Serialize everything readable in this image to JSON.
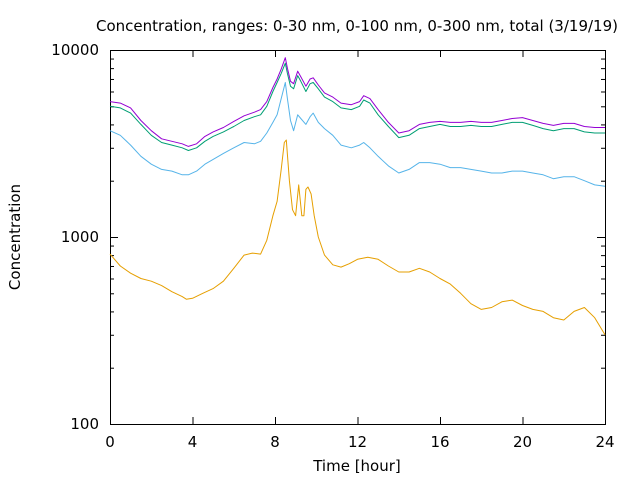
{
  "chart_data": {
    "type": "line",
    "title": "Concentration, ranges: 0-30 nm, 0-100 nm, 0-300 nm, total (3/19/19)",
    "xlabel": "Time [hour]",
    "ylabel": "Concentration",
    "xlim": [
      0,
      24
    ],
    "ylim": [
      100,
      10000
    ],
    "yscale": "log",
    "grid": false,
    "legend": "none",
    "xticks": [
      0,
      4,
      8,
      12,
      16,
      20,
      24
    ],
    "xtick_labels": [
      "0",
      "4",
      "8",
      "12",
      "16",
      "20",
      "24"
    ],
    "yticks": [
      100,
      1000,
      10000
    ],
    "ytick_labels": [
      "100",
      "1000",
      "10000"
    ],
    "series": [
      {
        "color": "#e69f00",
        "x": [
          0,
          0.5,
          1,
          1.5,
          2,
          2.5,
          3,
          3.5,
          3.7,
          4,
          4.5,
          5,
          5.5,
          6,
          6.5,
          6.9,
          7.3,
          7.6,
          7.9,
          8.1,
          8.3,
          8.45,
          8.55,
          8.7,
          8.85,
          9.0,
          9.15,
          9.3,
          9.4,
          9.5,
          9.6,
          9.75,
          9.9,
          10.1,
          10.4,
          10.8,
          11.2,
          11.6,
          12,
          12.5,
          13,
          13.5,
          14,
          14.5,
          15,
          15.5,
          16,
          16.5,
          17,
          17.5,
          18,
          18.5,
          19,
          19.5,
          20,
          20.5,
          21,
          21.5,
          22,
          22.5,
          23,
          23.5,
          24
        ],
        "values": [
          810,
          700,
          640,
          600,
          580,
          550,
          510,
          480,
          465,
          470,
          500,
          530,
          580,
          680,
          800,
          820,
          810,
          960,
          1300,
          1550,
          2300,
          3200,
          3300,
          2000,
          1400,
          1300,
          1900,
          1300,
          1300,
          1800,
          1850,
          1700,
          1300,
          1000,
          800,
          710,
          690,
          720,
          760,
          780,
          760,
          700,
          650,
          650,
          680,
          650,
          600,
          560,
          500,
          440,
          410,
          420,
          450,
          460,
          430,
          410,
          400,
          370,
          360,
          400,
          420,
          370,
          300
        ]
      },
      {
        "color": "#56b4e9",
        "x": [
          0,
          0.5,
          1,
          1.5,
          2,
          2.5,
          3,
          3.5,
          3.8,
          4.2,
          4.6,
          5,
          5.5,
          6,
          6.5,
          7,
          7.3,
          7.6,
          7.9,
          8.1,
          8.3,
          8.5,
          8.6,
          8.75,
          8.9,
          9.1,
          9.25,
          9.5,
          9.7,
          9.85,
          10.1,
          10.4,
          10.8,
          11.2,
          11.7,
          12.1,
          12.3,
          12.6,
          13,
          13.5,
          14,
          14.5,
          15,
          15.5,
          16,
          16.5,
          17,
          17.5,
          18,
          18.5,
          19,
          19.5,
          20,
          20.5,
          21,
          21.5,
          22,
          22.5,
          23,
          23.5,
          24
        ],
        "values": [
          3700,
          3500,
          3100,
          2700,
          2450,
          2300,
          2250,
          2150,
          2150,
          2250,
          2450,
          2600,
          2800,
          3000,
          3200,
          3150,
          3250,
          3600,
          4100,
          4500,
          5500,
          6700,
          5500,
          4200,
          3700,
          4500,
          4300,
          4000,
          4400,
          4600,
          4100,
          3800,
          3500,
          3100,
          3000,
          3100,
          3200,
          3000,
          2700,
          2400,
          2200,
          2300,
          2500,
          2500,
          2450,
          2350,
          2350,
          2300,
          2250,
          2200,
          2200,
          2250,
          2250,
          2200,
          2150,
          2050,
          2100,
          2100,
          2000,
          1900,
          1870
        ]
      },
      {
        "color": "#009e73",
        "x": [
          0,
          0.5,
          1,
          1.5,
          2,
          2.5,
          3,
          3.5,
          3.8,
          4.2,
          4.6,
          5,
          5.5,
          6,
          6.5,
          7,
          7.3,
          7.6,
          7.9,
          8.1,
          8.3,
          8.5,
          8.6,
          8.75,
          8.9,
          9.1,
          9.25,
          9.5,
          9.7,
          9.85,
          10.1,
          10.4,
          10.8,
          11.2,
          11.7,
          12.1,
          12.3,
          12.6,
          13,
          13.5,
          14,
          14.5,
          15,
          15.5,
          16,
          16.5,
          17,
          17.5,
          18,
          18.5,
          19,
          19.5,
          20,
          20.5,
          21,
          21.5,
          22,
          22.5,
          23,
          23.5,
          24
        ],
        "values": [
          5000,
          4900,
          4600,
          4000,
          3500,
          3200,
          3100,
          3000,
          2900,
          3000,
          3250,
          3450,
          3650,
          3900,
          4200,
          4400,
          4500,
          5000,
          6000,
          6700,
          7500,
          8500,
          7500,
          6400,
          6200,
          7300,
          6800,
          6000,
          6600,
          6700,
          6200,
          5600,
          5300,
          4900,
          4800,
          5000,
          5400,
          5200,
          4500,
          3900,
          3400,
          3500,
          3800,
          3900,
          4000,
          3900,
          3900,
          3950,
          3900,
          3900,
          4000,
          4100,
          4100,
          3950,
          3800,
          3700,
          3800,
          3800,
          3650,
          3600,
          3600
        ]
      },
      {
        "color": "#9400d3",
        "x": [
          0,
          0.5,
          1,
          1.5,
          2,
          2.5,
          3,
          3.5,
          3.8,
          4.2,
          4.6,
          5,
          5.5,
          6,
          6.5,
          7,
          7.3,
          7.6,
          7.9,
          8.1,
          8.3,
          8.5,
          8.6,
          8.75,
          8.9,
          9.1,
          9.25,
          9.5,
          9.7,
          9.85,
          10.1,
          10.4,
          10.8,
          11.2,
          11.7,
          12.1,
          12.3,
          12.6,
          13,
          13.5,
          14,
          14.5,
          15,
          15.5,
          16,
          16.5,
          17,
          17.5,
          18,
          18.5,
          19,
          19.5,
          20,
          20.5,
          21,
          21.5,
          22,
          22.5,
          23,
          23.5,
          24
        ],
        "values": [
          5300,
          5200,
          4900,
          4200,
          3700,
          3350,
          3250,
          3150,
          3050,
          3150,
          3450,
          3650,
          3850,
          4150,
          4450,
          4650,
          4800,
          5300,
          6300,
          7000,
          7900,
          9100,
          8000,
          6800,
          6600,
          7700,
          7200,
          6400,
          7000,
          7100,
          6500,
          5900,
          5600,
          5200,
          5100,
          5300,
          5700,
          5500,
          4800,
          4100,
          3600,
          3700,
          4000,
          4100,
          4150,
          4100,
          4100,
          4150,
          4100,
          4100,
          4200,
          4300,
          4350,
          4200,
          4050,
          3950,
          4050,
          4050,
          3900,
          3850,
          3850
        ]
      }
    ]
  }
}
